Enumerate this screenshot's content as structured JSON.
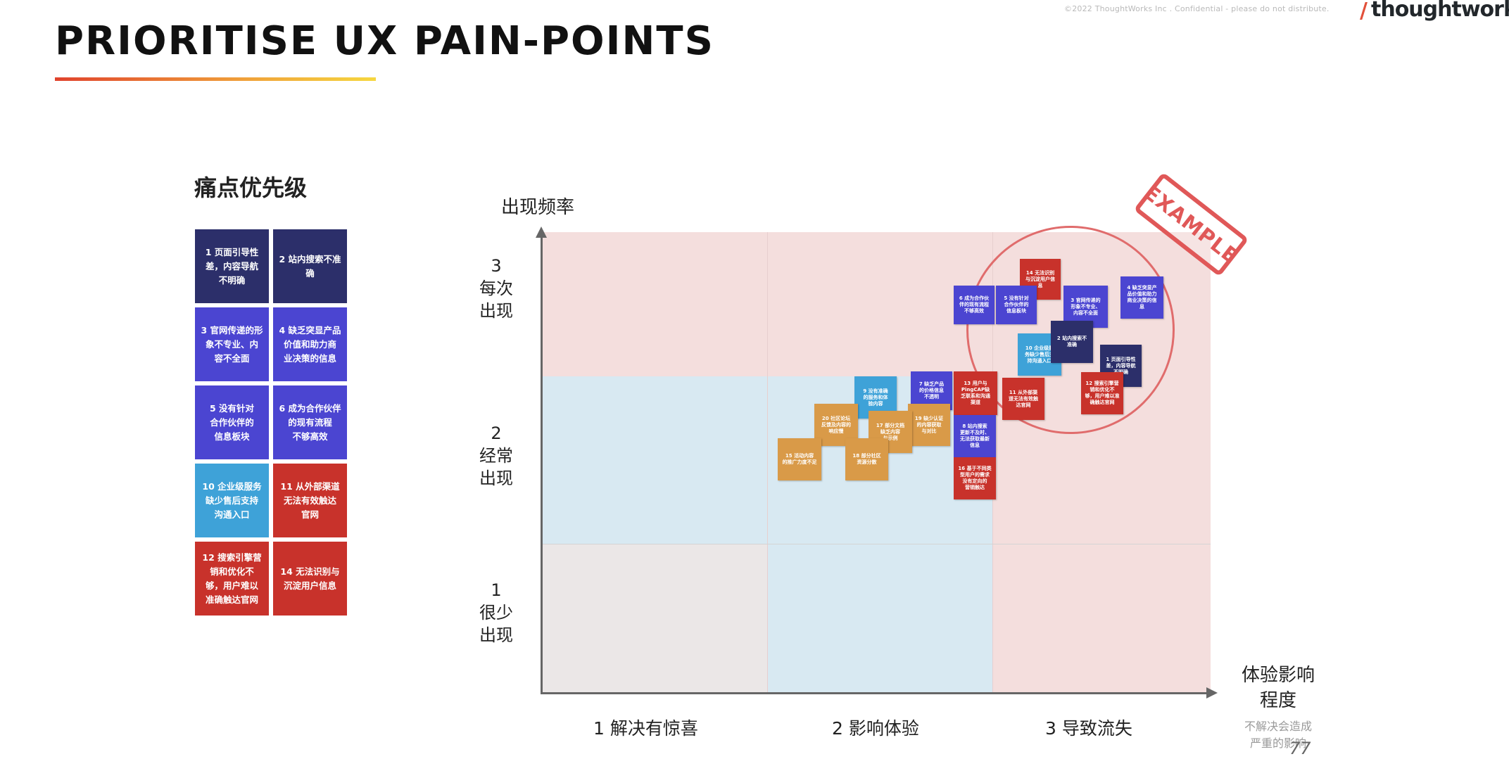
{
  "header": {
    "copyright": "©2022 ThoughtWorks Inc . Confidential - please do not distribute.",
    "brand_slash": "/",
    "brand_name": "thoughtworks",
    "title": "PRIORITISE UX PAIN-POINTS"
  },
  "legend": {
    "title": "痛点优先级",
    "items": [
      {
        "text": "1 页面引导性\n差，内容导航\n不明确",
        "color": "#2c2f6a"
      },
      {
        "text": "2 站内搜索不准\n确",
        "color": "#2c2f6a"
      },
      {
        "text": "3 官网传递的形\n象不专业、内\n容不全面",
        "color": "#4b45d1"
      },
      {
        "text": "4 缺乏突显产品\n价值和助力商\n业决策的信息",
        "color": "#4b45d1"
      },
      {
        "text": "5 没有针对\n合作伙伴的\n信息板块",
        "color": "#4b45d1"
      },
      {
        "text": "6 成为合作伙伴\n的现有流程\n不够高效",
        "color": "#4b45d1"
      },
      {
        "text": "10 企业级服务\n缺少售后支持\n沟通入口",
        "color": "#3ea2d8"
      },
      {
        "text": "11 从外部渠道\n无法有效触达\n官网",
        "color": "#c8322b"
      },
      {
        "text": "12 搜索引擎营\n销和优化不\n够，用户难以\n准确触达官网",
        "color": "#c8322b"
      },
      {
        "text": "14 无法识别与\n沉淀用户信息",
        "color": "#c8322b"
      }
    ]
  },
  "chart": {
    "y_axis_title": "出现频率",
    "y_levels": [
      "3\n每次\n出现",
      "2\n经常\n出现",
      "1\n很少\n出现"
    ],
    "x_levels": [
      "1 解决有惊喜",
      "2 影响体验",
      "3 导致流失"
    ],
    "x_axis_title": "体验影响\n程度",
    "x_axis_subtitle": "不解决会造成\n严重的影响",
    "stamp": "EXAMPLE",
    "notes": [
      {
        "text": "14 无法识别\n与沉淀用户信\n息",
        "color": "#c8322b"
      },
      {
        "text": "6 成为合作伙\n伴的现有流程\n不够高效",
        "color": "#4b45d1"
      },
      {
        "text": "5 没有针对\n合作伙伴的\n信息板块",
        "color": "#4b45d1"
      },
      {
        "text": "3 官网传递的\n形象不专业、\n内容不全面",
        "color": "#4b45d1"
      },
      {
        "text": "4 缺乏突显产\n品价值和助力\n商业决策的信\n息",
        "color": "#4b45d1"
      },
      {
        "text": "10 企业级服\n务缺少售后支\n持沟通入口",
        "color": "#3ea2d8"
      },
      {
        "text": "2 站内搜索不\n准确",
        "color": "#2c2f6a"
      },
      {
        "text": "1 页面引导性\n差，内容导航\n不明确",
        "color": "#2c2f6a"
      },
      {
        "text": "12 搜索引擎营\n销和优化不\n够，用户难以准\n确触达官网",
        "color": "#c8322b"
      },
      {
        "text": "11 从外部渠\n道无法有效触\n达官网",
        "color": "#c8322b"
      },
      {
        "text": "13 用户与\nPingCAP缺\n乏联系和沟通\n渠道",
        "color": "#c8322b"
      },
      {
        "text": "7 缺乏产品\n的价格信息\n不透明",
        "color": "#4b45d1"
      },
      {
        "text": "8 站内搜索\n更新不及时、\n无法获取最新\n信息",
        "color": "#4b45d1"
      },
      {
        "text": "16 基于不同类\n型用户的需求\n没有定向的\n营销触达",
        "color": "#c8322b"
      },
      {
        "text": "9 没有准确\n的服务和体\n验内容",
        "color": "#3ea2d8"
      },
      {
        "text": "19 缺少认证\n的内容获取\n与对比",
        "color": "#d99a48"
      },
      {
        "text": "17 部分文档\n缺乏内容\n与示例",
        "color": "#d99a48"
      },
      {
        "text": "20 社区论坛\n反馈及内容的\n响应慢",
        "color": "#d99a48"
      },
      {
        "text": "18 部分社区\n资源分散",
        "color": "#d99a48"
      },
      {
        "text": "15 活动内容\n的推广力度不足",
        "color": "#d99a48"
      }
    ]
  },
  "footer": {
    "page_number": "77"
  }
}
